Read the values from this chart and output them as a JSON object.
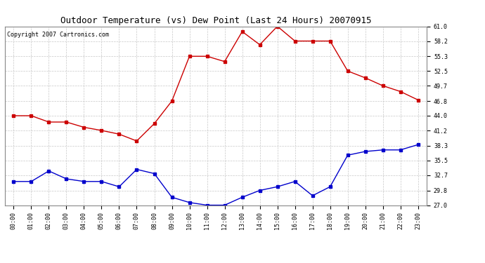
{
  "title": "Outdoor Temperature (vs) Dew Point (Last 24 Hours) 20070915",
  "copyright_text": "Copyright 2007 Cartronics.com",
  "x_labels": [
    "00:00",
    "01:00",
    "02:00",
    "03:00",
    "04:00",
    "05:00",
    "06:00",
    "07:00",
    "08:00",
    "09:00",
    "10:00",
    "11:00",
    "12:00",
    "13:00",
    "14:00",
    "15:00",
    "16:00",
    "17:00",
    "18:00",
    "19:00",
    "20:00",
    "21:00",
    "22:00",
    "23:00"
  ],
  "temp_data": [
    44.0,
    44.0,
    42.8,
    42.8,
    41.8,
    41.2,
    40.5,
    39.2,
    42.5,
    46.8,
    55.3,
    55.3,
    54.3,
    60.0,
    57.5,
    61.0,
    58.2,
    58.2,
    58.2,
    52.5,
    51.2,
    49.7,
    48.6,
    47.0
  ],
  "dew_data": [
    31.5,
    31.5,
    33.5,
    32.0,
    31.5,
    31.5,
    30.5,
    33.8,
    33.0,
    28.5,
    27.5,
    27.0,
    27.0,
    28.5,
    29.8,
    30.5,
    31.5,
    28.8,
    30.5,
    36.5,
    37.2,
    37.5,
    37.5,
    38.5
  ],
  "temp_color": "#cc0000",
  "dew_color": "#0000cc",
  "bg_color": "#ffffff",
  "plot_bg_color": "#ffffff",
  "grid_color": "#c8c8c8",
  "ylim_min": 27.0,
  "ylim_max": 61.0,
  "yticks": [
    27.0,
    29.8,
    32.7,
    35.5,
    38.3,
    41.2,
    44.0,
    46.8,
    49.7,
    52.5,
    55.3,
    58.2,
    61.0
  ],
  "title_fontsize": 9,
  "tick_fontsize": 6,
  "copyright_fontsize": 6,
  "marker": "s",
  "markersize": 2.5,
  "linewidth": 1.0
}
